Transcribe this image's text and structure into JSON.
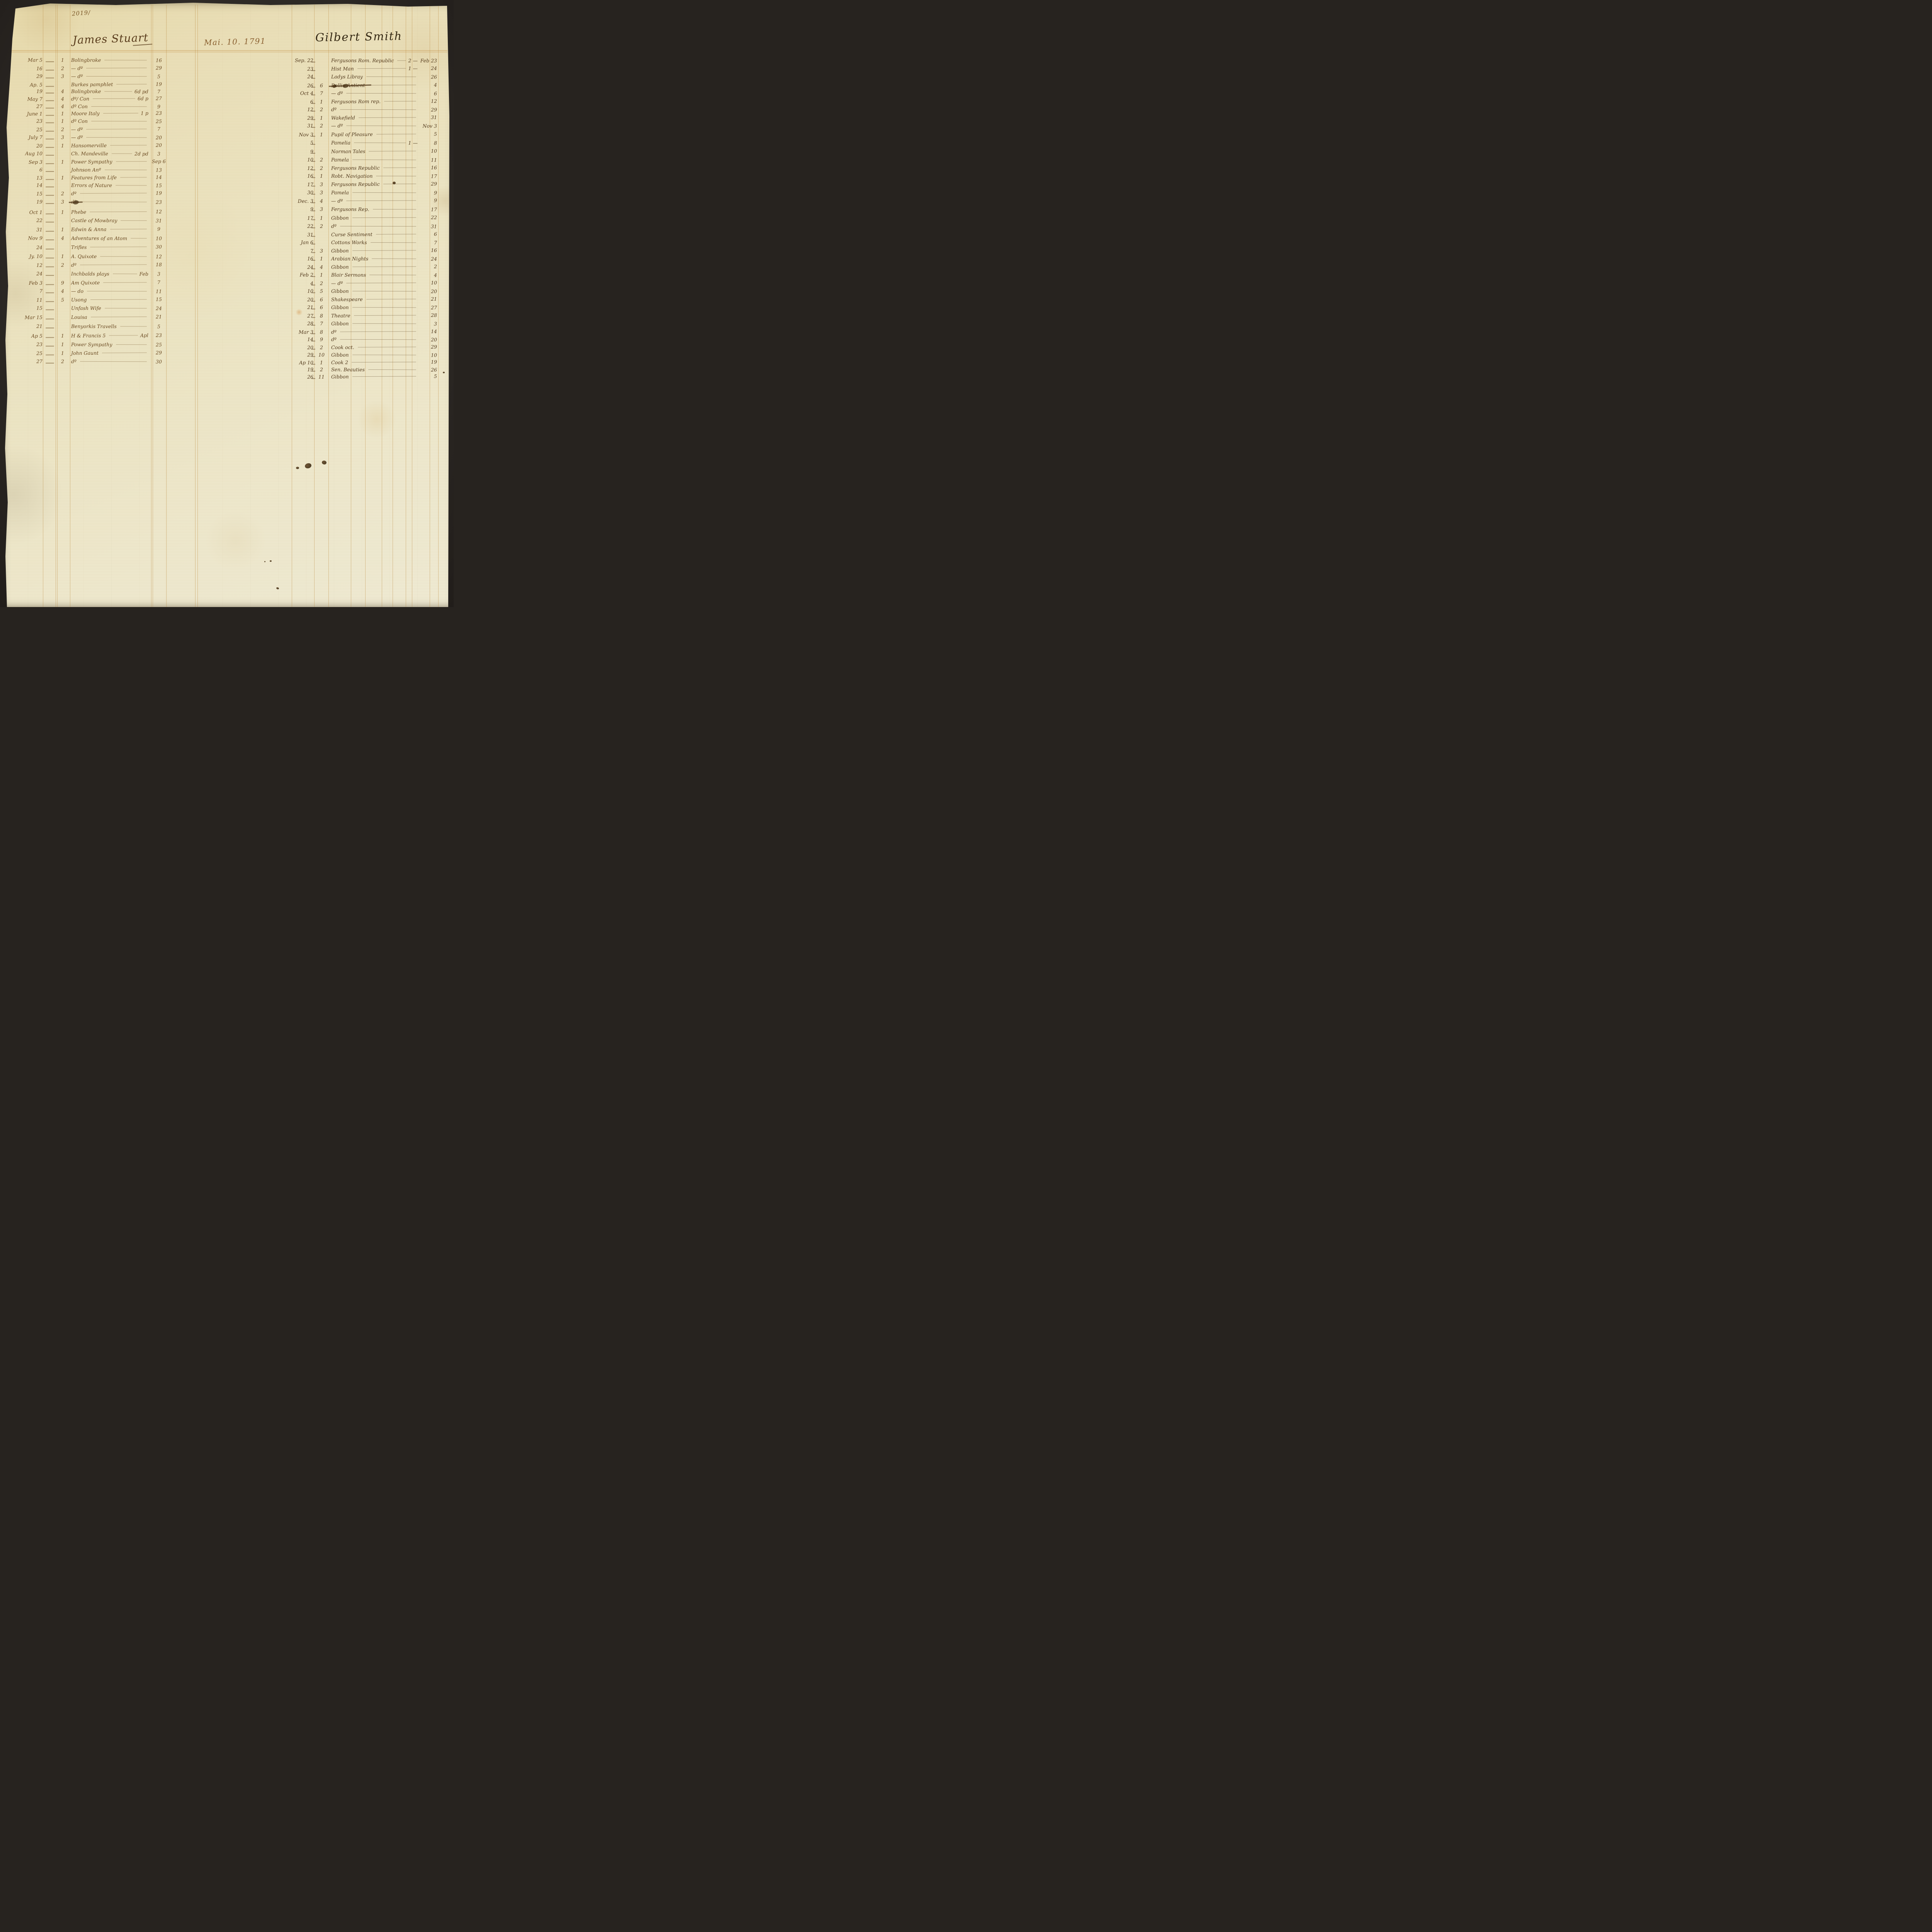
{
  "page": {
    "folio_number": "2019/",
    "date_heading": "Mai. 10. 1791",
    "accounts": [
      {
        "name": "James Stuart",
        "entries": [
          {
            "d": "Mar 5",
            "v": "1",
            "t": "Bolingbroke",
            "n": "",
            "r": "16"
          },
          {
            "d": "16",
            "v": "2",
            "t": "— dº",
            "n": "",
            "r": "29"
          },
          {
            "d": "29",
            "v": "3",
            "t": "— dº",
            "n": "",
            "r": "5"
          },
          {
            "d": "Ap. 5",
            "v": "",
            "t": "Burkes pamphlet",
            "n": "",
            "r": "19"
          },
          {
            "d": "19",
            "v": "4",
            "t": "Bolingbroke",
            "n": "6d pd",
            "r": "7"
          },
          {
            "d": "May 7",
            "v": "4",
            "t": "dº/ Con",
            "n": "6d p",
            "r": "27"
          },
          {
            "d": "27",
            "v": "4",
            "t": "dº Con",
            "n": "",
            "r": "9"
          },
          {
            "d": "June 1",
            "v": "1",
            "t": "Moore Italy",
            "n": "1 p",
            "r": "23"
          },
          {
            "d": "23",
            "v": "1",
            "t": "dº Con",
            "n": "",
            "r": "25"
          },
          {
            "d": "25",
            "v": "2",
            "t": "— dº",
            "n": "",
            "r": "7"
          },
          {
            "d": "July 7",
            "v": "3",
            "t": "— dº",
            "n": "",
            "r": "20"
          },
          {
            "d": "20",
            "v": "1",
            "t": "Hansomerville",
            "n": "",
            "r": "20"
          },
          {
            "d": "Aug 10",
            "v": "",
            "t": "Ch. Mandeville",
            "n": "2d pd",
            "r": "3"
          },
          {
            "d": "Sep 3",
            "v": "1",
            "t": "Power Sympathy",
            "n": "",
            "r": "Sep 6"
          },
          {
            "d": "6",
            "v": "",
            "t": "Johnson Anº",
            "n": "",
            "r": "13"
          },
          {
            "d": "13",
            "v": "1",
            "t": "Features from Life",
            "n": "",
            "r": "14"
          },
          {
            "d": "14",
            "v": "",
            "t": "Errors of Nature",
            "n": "",
            "r": "15"
          },
          {
            "d": "15",
            "v": "2",
            "t": "dº",
            "n": "",
            "r": "19"
          },
          {
            "d": "19",
            "v": "3",
            "t": "dº",
            "n": "",
            "r": "23",
            "s": true
          },
          {
            "d": "Oct 1",
            "v": "1",
            "t": "Phebe",
            "n": "",
            "r": "12"
          },
          {
            "d": "22",
            "v": "",
            "t": "Castle of Mowbray",
            "n": "",
            "r": "31"
          },
          {
            "d": "31",
            "v": "1",
            "t": "Edwin & Anna",
            "n": "",
            "r": "9"
          },
          {
            "d": "Nov 9",
            "v": "4",
            "t": "Adventures of an Atom",
            "n": "",
            "r": "10"
          },
          {
            "d": "24",
            "v": "",
            "t": "Trifles",
            "n": "",
            "r": "30"
          },
          {
            "d": "Jy. 10",
            "v": "1",
            "t": "A. Quixote",
            "n": "",
            "r": "12"
          },
          {
            "d": "12",
            "v": "2",
            "t": "dº",
            "n": "",
            "r": "18"
          },
          {
            "d": "24",
            "v": "",
            "t": "Inchbalds plays",
            "n": "Feb",
            "r": "3"
          },
          {
            "d": "Feb 3",
            "v": "9",
            "t": "Am Quixote",
            "n": "",
            "r": "7"
          },
          {
            "d": "7",
            "v": "4",
            "t": "— do",
            "n": "",
            "r": "11"
          },
          {
            "d": "11",
            "v": "5",
            "t": "Usong",
            "n": "",
            "r": "15"
          },
          {
            "d": "15",
            "v": "",
            "t": "Unfash Wife",
            "n": "",
            "r": "24"
          },
          {
            "d": "Mar 15",
            "v": "",
            "t": "Louisa",
            "n": "",
            "r": "21"
          },
          {
            "d": "21",
            "v": "",
            "t": "Benyorkis Travells",
            "n": "",
            "r": "5"
          },
          {
            "d": "Ap 5",
            "v": "1",
            "t": "H & Francis 5",
            "n": "Apl",
            "r": "23"
          },
          {
            "d": "23",
            "v": "1",
            "t": "Power Sympathy",
            "n": "",
            "r": "25"
          },
          {
            "d": "25",
            "v": "1",
            "t": "John Gaunt",
            "n": "",
            "r": "29"
          },
          {
            "d": "27",
            "v": "2",
            "t": "dº",
            "n": "",
            "r": "30"
          }
        ]
      },
      {
        "name": "Gilbert Smith",
        "entries": [
          {
            "d": "Sep. 22",
            "v": "",
            "t": "Fergusons Rom. Republic",
            "n": "2 —",
            "r": "Feb 23"
          },
          {
            "d": "23",
            "v": "",
            "t": "Hist Man",
            "n": "1 —",
            "r": "24"
          },
          {
            "d": "24",
            "v": "",
            "t": "Ladys Libray",
            "n": "",
            "r": "26"
          },
          {
            "d": "26",
            "v": "6",
            "t": "Rollin Antient",
            "n": "",
            "r": "4",
            "s": true
          },
          {
            "d": "Oct 4",
            "v": "7",
            "t": "— dº",
            "n": "",
            "r": "6"
          },
          {
            "d": "6",
            "v": "1",
            "t": "Fergusons Rom rep.",
            "n": "",
            "r": "12"
          },
          {
            "d": "12",
            "v": "2",
            "t": "dº",
            "n": "",
            "r": "29"
          },
          {
            "d": "29",
            "v": "1",
            "t": "Wakefield",
            "n": "",
            "r": "31"
          },
          {
            "d": "31",
            "v": "2",
            "t": "— dº",
            "n": "",
            "r": "Nov 3"
          },
          {
            "d": "Nov 3",
            "v": "1",
            "t": "Pupil of Pleasure",
            "n": "",
            "r": "5"
          },
          {
            "d": "5",
            "v": "",
            "t": "Pamelia",
            "n": "1 —",
            "r": "8"
          },
          {
            "d": "9",
            "v": "",
            "t": "Norman Tales",
            "n": "",
            "r": "10"
          },
          {
            "d": "10",
            "v": "2",
            "t": "Pamela",
            "n": "",
            "r": "11"
          },
          {
            "d": "12",
            "v": "2",
            "t": "Fergusons Republic",
            "n": "",
            "r": "16"
          },
          {
            "d": "16",
            "v": "1",
            "t": "Robt. Navigation",
            "n": "",
            "r": "17"
          },
          {
            "d": "17",
            "v": "3",
            "t": "Fergusons Republic",
            "n": "",
            "r": "29"
          },
          {
            "d": "30",
            "v": "3",
            "t": "Pamela",
            "n": "",
            "r": "9"
          },
          {
            "d": "Dec. 3",
            "v": "4",
            "t": "— dº",
            "n": "",
            "r": "9"
          },
          {
            "d": "9",
            "v": "3",
            "t": "Fergusons Rep.",
            "n": "",
            "r": "17"
          },
          {
            "d": "17",
            "v": "1",
            "t": "Gibbon",
            "n": "",
            "r": "22"
          },
          {
            "d": "22",
            "v": "2",
            "t": "dº",
            "n": "",
            "r": "31"
          },
          {
            "d": "31",
            "v": "",
            "t": "Curse Sentiment",
            "n": "",
            "r": "6"
          },
          {
            "d": "Jan 6",
            "v": "",
            "t": "Cottons Works",
            "n": "",
            "r": "7"
          },
          {
            "d": "7",
            "v": "3",
            "t": "Gibbon",
            "n": "",
            "r": "16"
          },
          {
            "d": "16",
            "v": "1",
            "t": "Arabian Nights",
            "n": "",
            "r": "24"
          },
          {
            "d": "24",
            "v": "4",
            "t": "Gibbon",
            "n": "",
            "r": "2"
          },
          {
            "d": "Feb 2",
            "v": "1",
            "t": "Blair Sermons",
            "n": "",
            "r": "4"
          },
          {
            "d": "4",
            "v": "2",
            "t": "— dº",
            "n": "",
            "r": "10"
          },
          {
            "d": "10",
            "v": "5",
            "t": "Gibbon",
            "n": "",
            "r": "20"
          },
          {
            "d": "20",
            "v": "6",
            "t": "Shakespeare",
            "n": "",
            "r": "21"
          },
          {
            "d": "21",
            "v": "6",
            "t": "Gibbon",
            "n": "",
            "r": "27"
          },
          {
            "d": "27",
            "v": "8",
            "t": "Theatre",
            "n": "",
            "r": "28"
          },
          {
            "d": "28",
            "v": "7",
            "t": "Gibbon",
            "n": "",
            "r": "3"
          },
          {
            "d": "Mar 3",
            "v": "8",
            "t": "dº",
            "n": "",
            "r": "14"
          },
          {
            "d": "14",
            "v": "9",
            "t": "dº",
            "n": "",
            "r": "20"
          },
          {
            "d": "20",
            "v": "2",
            "t": "Cook oct.",
            "n": "",
            "r": "29"
          },
          {
            "d": "29",
            "v": "10",
            "t": "Gibbon",
            "n": "",
            "r": "10"
          },
          {
            "d": "Ap 10",
            "v": "1",
            "t": "Cook 2",
            "n": "",
            "r": "19"
          },
          {
            "d": "19",
            "v": "2",
            "t": "Sen. Beauties",
            "n": "",
            "r": "26"
          },
          {
            "d": "26",
            "v": "11",
            "t": "Gibbon",
            "n": "",
            "r": "5"
          }
        ]
      }
    ]
  }
}
